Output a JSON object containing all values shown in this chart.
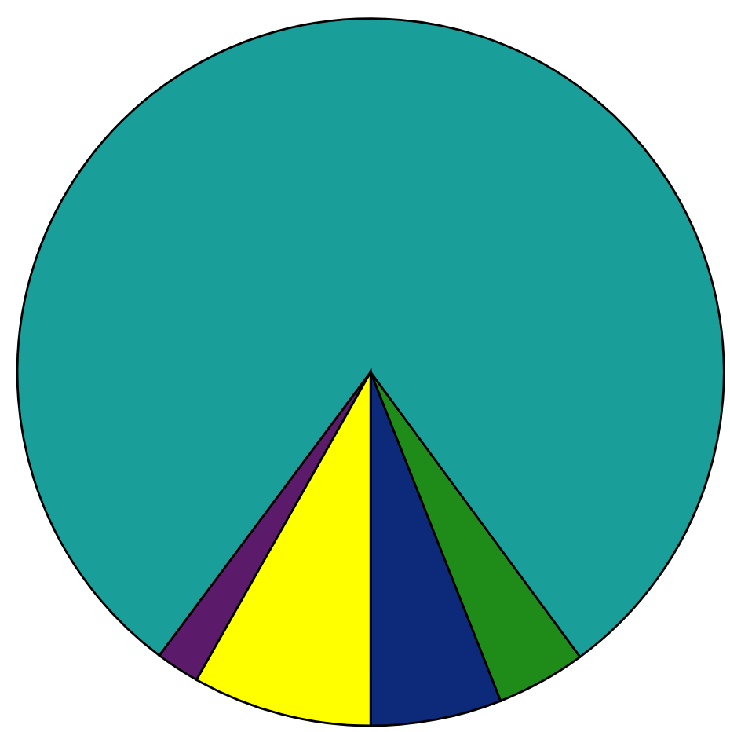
{
  "chart_data": {
    "type": "pie",
    "categories": [
      null,
      null,
      null,
      null,
      null
    ],
    "values": [
      6.0,
      4.1,
      79.7,
      2.0,
      8.2
    ],
    "colors": [
      "#0d2a7a",
      "#1f8c1a",
      "#1a9e9a",
      "#5c1a6b",
      "#ffff00"
    ]
  }
}
